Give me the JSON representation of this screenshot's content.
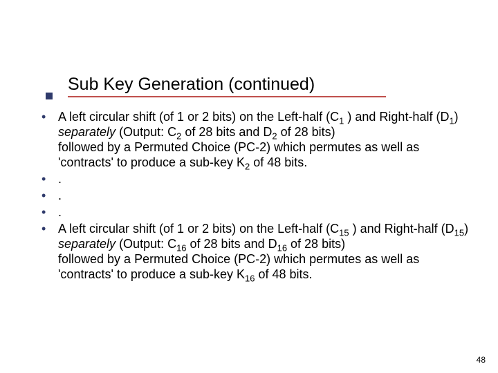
{
  "colors": {
    "underline": "#c0504d",
    "bullet": "#2f3a6b",
    "text": "#000000",
    "background": "#ffffff"
  },
  "typography": {
    "title_fontsize": 25,
    "body_fontsize": 18,
    "font_family": "Verdana"
  },
  "title": "Sub Key Generation (continued)",
  "bullets": {
    "b1": {
      "p1a": "A left circular shift (of 1 or 2 bits) on the Left-half (C",
      "s1": "1",
      "p1b": " ) and Right-half (D",
      "s2": "1",
      "p1c": ") ",
      "it": "separately",
      "p1d": " (Output: C",
      "s3": "2",
      "p1e": " of 28 bits and D",
      "s4": "2",
      "p1f": " of 28 bits)",
      "p2a": "followed by a Permuted Choice (PC-2) which permutes as well as 'contracts' to produce a sub-key K",
      "s5": "2",
      "p2b": " of 48 bits."
    },
    "dot": ".",
    "b5": {
      "p1a": "A left circular shift (of 1 or 2 bits) on the Left-half (C",
      "s1": "15",
      "p1b": " ) and Right-half (D",
      "s2": "15",
      "p1c": ") ",
      "it": "separately",
      "p1d": " (Output: C",
      "s3": "16",
      "p1e": " of 28 bits and D",
      "s4": "16",
      "p1f": " of 28 bits)",
      "p2a": "followed by a Permuted Choice (PC-2) which permutes as well as 'contracts' to produce a sub-key K",
      "s5": "16",
      "p2b": " of 48 bits."
    }
  },
  "page_number": "48"
}
